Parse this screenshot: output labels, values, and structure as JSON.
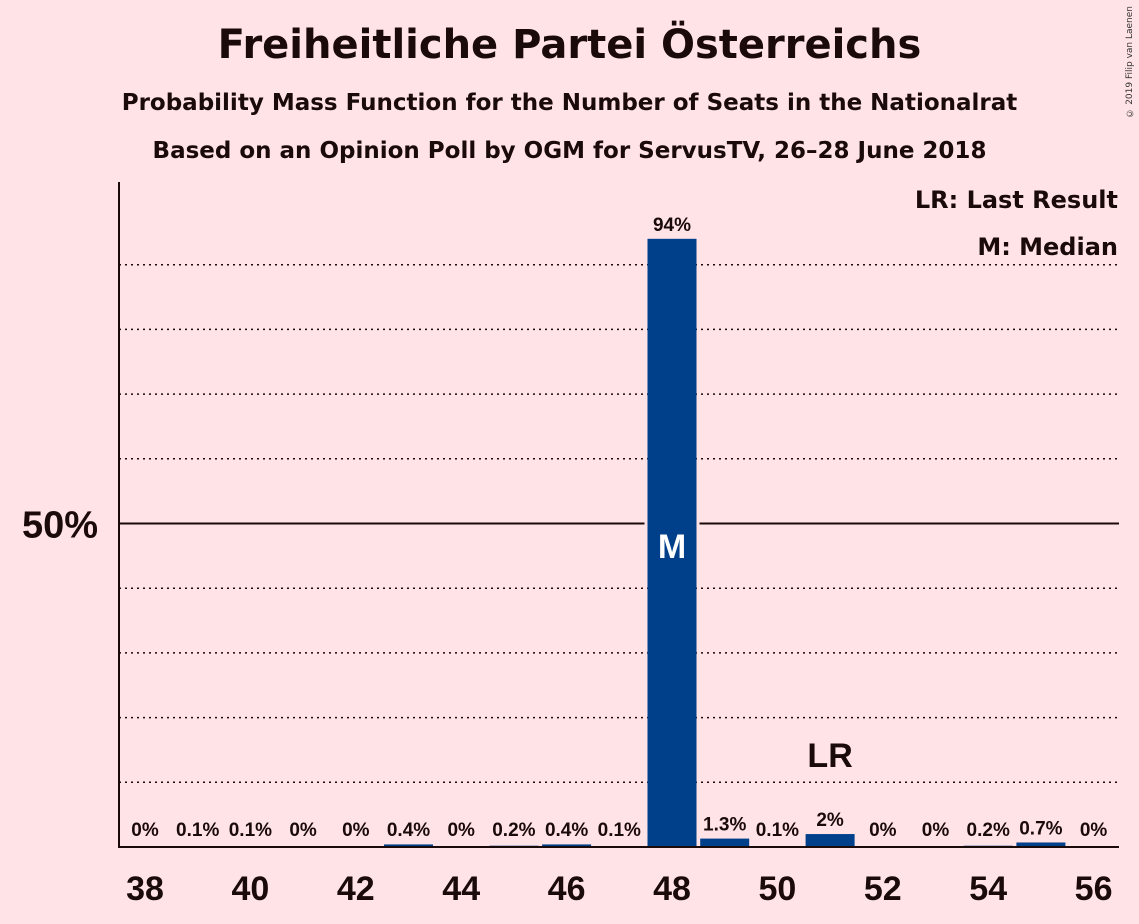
{
  "chart_data": {
    "type": "bar",
    "title": "Freiheitliche Partei Österreichs",
    "subtitle": "Probability Mass Function for the Number of Seats in the Nationalrat",
    "subtitle2": "Based on an Opinion Poll by OGM for ServusTV, 26–28 June 2018",
    "copyright": "© 2019 Filip van Laenen",
    "legend": {
      "last_result": "LR: Last Result",
      "median": "M: Median"
    },
    "x": [
      38,
      39,
      40,
      41,
      42,
      43,
      44,
      45,
      46,
      47,
      48,
      49,
      50,
      51,
      52,
      53,
      54,
      55,
      56
    ],
    "values": [
      0,
      0.1,
      0.1,
      0,
      0,
      0.4,
      0,
      0.2,
      0.4,
      0.1,
      94,
      1.3,
      0.1,
      2,
      0,
      0,
      0.2,
      0.7,
      0
    ],
    "labels": [
      "0%",
      "0.1%",
      "0.1%",
      "0%",
      "0%",
      "0.4%",
      "0%",
      "0.2%",
      "0.4%",
      "0.1%",
      "94%",
      "1.3%",
      "0.1%",
      "2%",
      "0%",
      "0%",
      "0.2%",
      "0.7%",
      "0%"
    ],
    "x_ticks": [
      38,
      40,
      42,
      44,
      46,
      48,
      50,
      52,
      54,
      56
    ],
    "y_tick_label": "50%",
    "ylim": [
      0,
      100
    ],
    "median_seat": 48,
    "median_marker": "M",
    "last_result_seat": 51,
    "last_result_marker": "LR",
    "bar_color": "#003f8a",
    "grid": "dotted every 10%",
    "legend_position": "top-right"
  }
}
